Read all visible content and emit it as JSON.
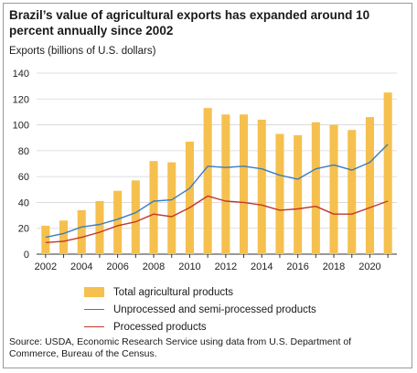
{
  "title": "Brazil’s value of agricultural exports has expanded around 10 percent annually since 2002",
  "source": "Source: USDA, Economic Research Service using data from U.S. Department of Commerce, Bureau of the Census.",
  "chart_data": {
    "type": "bar",
    "ylabel": "Exports (billions of U.S. dollars)",
    "xlabel": "",
    "ylim": [
      0,
      140
    ],
    "yticks": [
      0,
      20,
      40,
      60,
      80,
      100,
      120,
      140
    ],
    "x": [
      2002,
      2003,
      2004,
      2005,
      2006,
      2007,
      2008,
      2009,
      2010,
      2011,
      2012,
      2013,
      2014,
      2015,
      2016,
      2017,
      2018,
      2019,
      2020,
      2021
    ],
    "xtick_labels": [
      "2002",
      "2004",
      "2006",
      "2008",
      "2010",
      "2012",
      "2014",
      "2016",
      "2018",
      "2020"
    ],
    "grid": "horizontal",
    "legend_position": "bottom",
    "series": [
      {
        "name": "Total agricultural  products",
        "type": "bar",
        "color": "#f5c04e",
        "values": [
          22,
          26,
          34,
          41,
          49,
          57,
          72,
          71,
          87,
          113,
          108,
          108,
          104,
          93,
          92,
          102,
          100,
          96,
          106,
          125
        ]
      },
      {
        "name": "Unprocessed and semi-processed products",
        "type": "line",
        "color": "#3b7cc0",
        "values": [
          13,
          16,
          21,
          23,
          27,
          32,
          41,
          42,
          51,
          68,
          67,
          68,
          66,
          61,
          58,
          66,
          69,
          65,
          71,
          85
        ]
      },
      {
        "name": "Processed products",
        "type": "line",
        "color": "#c0392b",
        "values": [
          9,
          10,
          13,
          17,
          22,
          25,
          31,
          29,
          36,
          45,
          41,
          40,
          38,
          34,
          35,
          37,
          31,
          31,
          36,
          41
        ]
      }
    ]
  }
}
